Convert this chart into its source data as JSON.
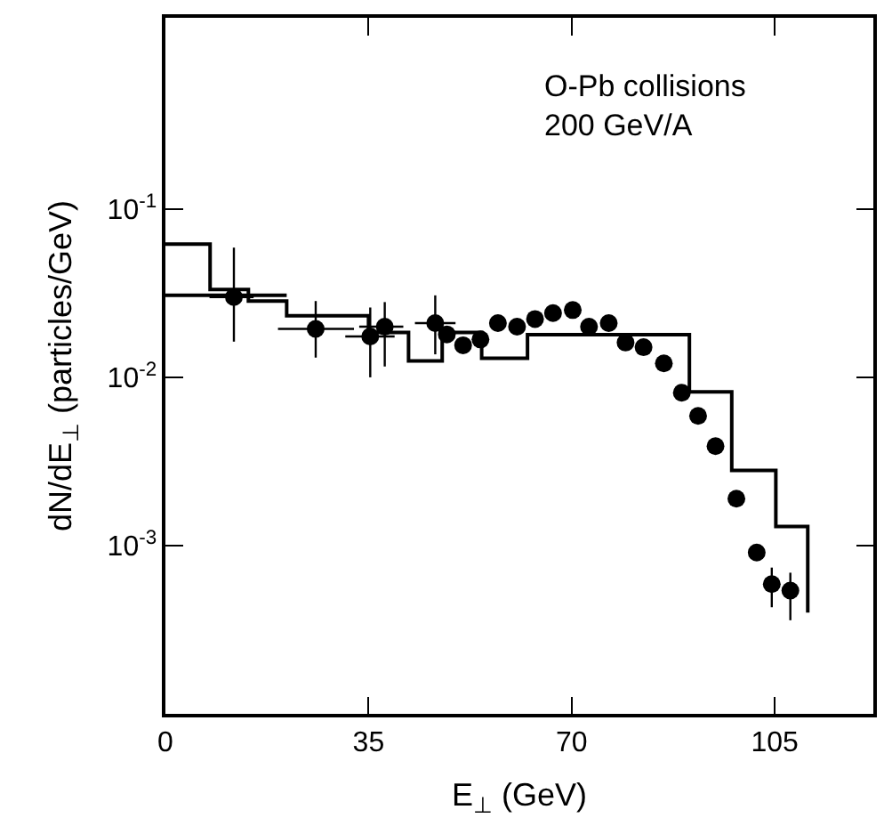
{
  "chart_data": {
    "type": "scatter",
    "xlabel": "E$_{⊥}$ (GeV)",
    "ylabel": "dN/dE$_{⊥}$ (particles/GeV)",
    "annotations": [
      "O-Pb collisions\n200 GeV/A"
    ],
    "xlim": [
      0,
      122
    ],
    "xticks": [
      0,
      35,
      70,
      105
    ],
    "ylim": [
      0.0001,
      1.37
    ],
    "yticks": [
      {
        "value": 0.1,
        "label": "10$^{-1}$"
      },
      {
        "value": 0.01,
        "label": "10$^{-2}$"
      },
      {
        "value": 0.001,
        "label": "10$^{-3}$"
      }
    ],
    "log": "y",
    "series": [
      {
        "type": "step",
        "color": "#000000",
        "line_style": "solid",
        "x": [
          0,
          7.7,
          14.3,
          20.9,
          35,
          41.9,
          47.7,
          54.5,
          62.4,
          90.3,
          97.6,
          105.2,
          110.7
        ],
        "values": [
          0.062,
          0.0333,
          0.0284,
          0.0232,
          0.0185,
          0.0125,
          0.0185,
          0.013,
          0.0179,
          0.0082,
          0.0028,
          0.0013,
          0.0004
        ]
      },
      {
        "type": "step",
        "color": "#000000",
        "line_style": "solid",
        "x": [
          0,
          20.9
        ],
        "values": [
          0.0307,
          0.0307
        ]
      },
      {
        "color": "#000000",
        "marker": "circle",
        "x": [
          11.8,
          25.9,
          35.3,
          37.8,
          46.5,
          48.5,
          51.3,
          54.3,
          57.3,
          60.6,
          63.7,
          66.8,
          70.2,
          73,
          76.4,
          79.3,
          82.4,
          85.9,
          89,
          91.8,
          94.8,
          98.4,
          101.9,
          104.5,
          107.7
        ],
        "values": [
          0.03,
          0.0194,
          0.0175,
          0.02,
          0.021,
          0.018,
          0.0155,
          0.0168,
          0.021,
          0.02,
          0.0222,
          0.0241,
          0.0251,
          0.02,
          0.021,
          0.0161,
          0.0151,
          0.0121,
          0.0081,
          0.0059,
          0.0039,
          0.0019,
          0.00091,
          0.00059,
          0.00054
        ],
        "errors": [
          [
            0.0163,
            0.059
          ],
          [
            0.0131,
            0.0284
          ],
          [
            0.01,
            0.026
          ],
          [
            0.0116,
            0.028
          ],
          [
            0.0137,
            0.0307
          ],
          null,
          null,
          null,
          null,
          null,
          null,
          null,
          null,
          null,
          null,
          null,
          null,
          null,
          null,
          null,
          null,
          null,
          null,
          [
            0.00043,
            0.00074
          ],
          [
            0.00036,
            0.00069
          ]
        ],
        "xerrors": [
          [
            7.6,
            15.2
          ],
          [
            19.4,
            32.5
          ],
          [
            31,
            39.5
          ],
          [
            33.4,
            41
          ],
          [
            43,
            50
          ],
          null,
          null,
          null,
          null,
          null,
          null,
          null,
          null,
          null,
          null,
          null,
          null,
          null,
          null,
          null,
          null,
          null,
          null,
          null,
          null
        ]
      }
    ]
  }
}
